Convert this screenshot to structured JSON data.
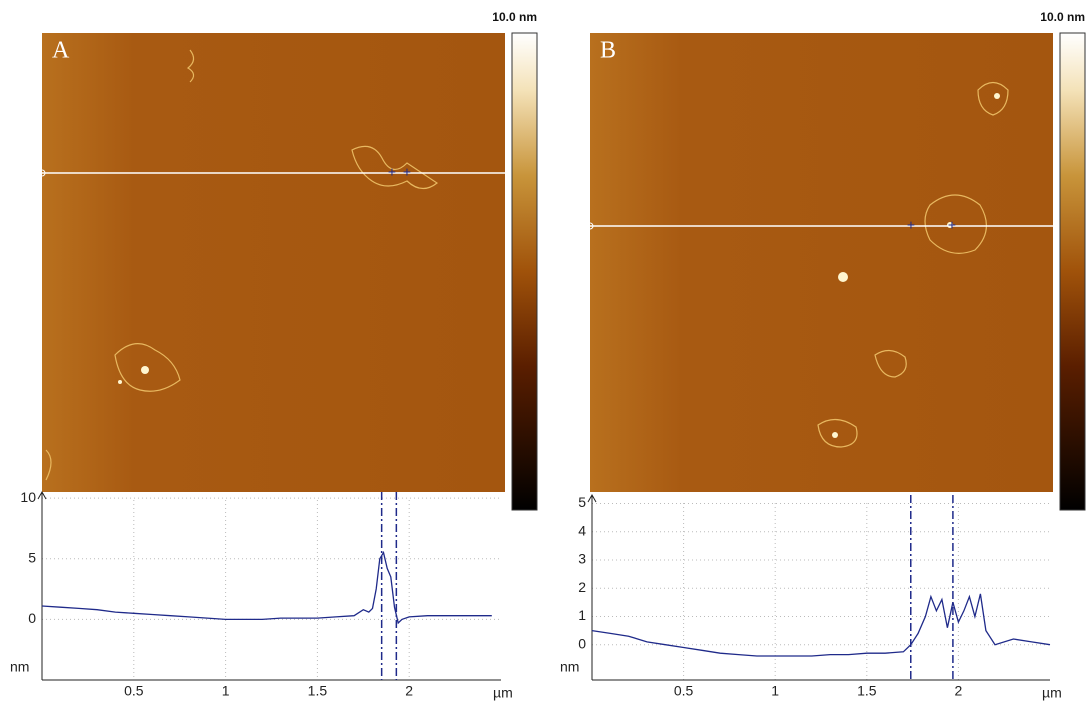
{
  "chart_data": [
    {
      "type": "line",
      "panel_label": "A",
      "colorbar_label": "10.0 nm",
      "xlabel": "µm",
      "ylabel": "nm",
      "x": [
        0,
        0.1,
        0.2,
        0.3,
        0.4,
        0.5,
        0.6,
        0.7,
        0.8,
        0.9,
        1.0,
        1.1,
        1.2,
        1.3,
        1.4,
        1.5,
        1.6,
        1.7,
        1.75,
        1.78,
        1.8,
        1.82,
        1.84,
        1.86,
        1.88,
        1.9,
        1.92,
        1.94,
        1.96,
        2.0,
        2.1,
        2.2,
        2.3,
        2.4,
        2.45
      ],
      "series": [
        {
          "color": "#1f2a8a",
          "values": [
            1.1,
            1.0,
            0.9,
            0.8,
            0.6,
            0.5,
            0.4,
            0.3,
            0.2,
            0.1,
            0.0,
            0.0,
            0.0,
            0.1,
            0.1,
            0.1,
            0.2,
            0.3,
            0.8,
            0.6,
            0.9,
            2.5,
            5.0,
            5.5,
            4.2,
            3.5,
            1.0,
            -0.3,
            0.0,
            0.2,
            0.3,
            0.3,
            0.3,
            0.3,
            0.3
          ]
        }
      ],
      "cursors": [
        1.85,
        1.93
      ],
      "xlim": [
        0,
        2.5
      ],
      "xticks": [
        0.5,
        1,
        1.5,
        2
      ],
      "ylim": [
        -5,
        10.5
      ],
      "yticks": [
        0,
        5,
        10
      ],
      "grid": true
    },
    {
      "type": "line",
      "panel_label": "B",
      "colorbar_label": "10.0 nm",
      "xlabel": "µm",
      "ylabel": "nm",
      "x": [
        0,
        0.1,
        0.2,
        0.3,
        0.4,
        0.5,
        0.6,
        0.7,
        0.8,
        0.9,
        1.0,
        1.1,
        1.2,
        1.3,
        1.4,
        1.5,
        1.6,
        1.7,
        1.74,
        1.78,
        1.82,
        1.85,
        1.88,
        1.91,
        1.94,
        1.97,
        2.0,
        2.03,
        2.06,
        2.09,
        2.12,
        2.15,
        2.2,
        2.3,
        2.4,
        2.5
      ],
      "series": [
        {
          "color": "#1f2a8a",
          "values": [
            0.5,
            0.4,
            0.3,
            0.1,
            0.0,
            -0.1,
            -0.2,
            -0.3,
            -0.35,
            -0.4,
            -0.4,
            -0.4,
            -0.4,
            -0.35,
            -0.35,
            -0.3,
            -0.3,
            -0.25,
            0.0,
            0.4,
            1.0,
            1.7,
            1.2,
            1.6,
            0.6,
            1.5,
            0.8,
            1.2,
            1.7,
            1.0,
            1.8,
            0.5,
            0.0,
            0.2,
            0.1,
            0.0
          ]
        }
      ],
      "cursors": [
        1.74,
        1.97
      ],
      "xlim": [
        0,
        2.5
      ],
      "xticks": [
        0.5,
        1,
        1.5,
        2
      ],
      "ylim": [
        -1.25,
        5.3
      ],
      "yticks": [
        0,
        1,
        2,
        3,
        4,
        5
      ],
      "grid": true
    }
  ]
}
